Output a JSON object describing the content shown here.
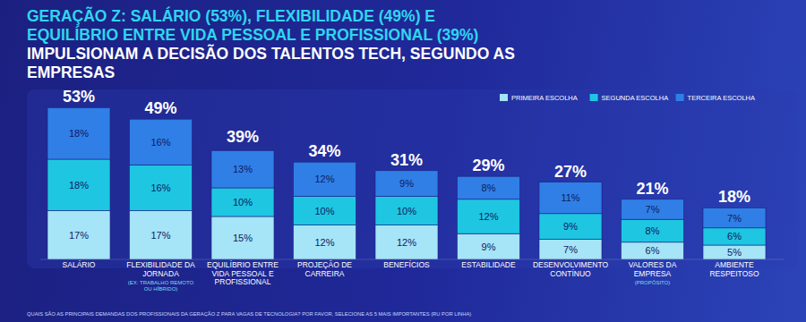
{
  "chart_data": {
    "type": "bar",
    "stacked": true,
    "data_labels": true,
    "tick_labels": false,
    "legend": "top-right",
    "title_highlight": "GERAÇÃO Z: SALÁRIO (53%), FLEXIBILIDADE (49%) E EQUILÍBRIO ENTRE VIDA PESSOAL E PROFISSIONAL (39%)",
    "title": "IMPULSIONAM A DECISÃO DOS TALENTOS TECH, SEGUNDO AS EMPRESAS",
    "note": "QUAIS SÃO AS PRINCIPAIS DEMANDAS DOS PROFISSIONAIS DA GERAÇÃO Z PARA VAGAS DE TECNOLOGIA? POR FAVOR, SELECIONE AS 5 MAIS IMPORTANTES (RU POR LINHA)",
    "categories": [
      "SALÁRIO",
      "FLEXIBILIDADE DA JORNADA",
      "EQUILÍBRIO ENTRE VIDA PESSOAL E PROFISSIONAL",
      "PROJEÇÃO DE CARREIRA",
      "BENEFÍCIOS",
      "ESTABILIDADE",
      "DESENVOLVIMENTO CONTÍNUO",
      "VALORES DA EMPRESA",
      "AMBIENTE RESPEITOSO"
    ],
    "category_notes": [
      null,
      "(EX: TRABALHO REMOTO OU HÍBRIDO)",
      null,
      null,
      null,
      null,
      null,
      "(PROPÓSITO)",
      null
    ],
    "ylim": [
      0,
      55
    ],
    "totals": [
      53,
      49,
      39,
      34,
      31,
      29,
      27,
      21,
      18
    ],
    "total_labels": [
      "53%",
      "49%",
      "39%",
      "34%",
      "31%",
      "29%",
      "27%",
      "21%",
      "18%"
    ],
    "series": [
      {
        "name": "PRIMEIRA ESCOLHA",
        "color": "#a6e4f7",
        "values": [
          17,
          17,
          15,
          12,
          12,
          9,
          7,
          6,
          5
        ],
        "value_labels": [
          "17%",
          "17%",
          "15%",
          "12%",
          "12%",
          "9%",
          "7%",
          "6%",
          "5%"
        ]
      },
      {
        "name": "SEGUNDA ESCOLHA",
        "color": "#1ec6e2",
        "values": [
          18,
          16,
          10,
          10,
          10,
          12,
          9,
          8,
          6
        ],
        "value_labels": [
          "18%",
          "16%",
          "10%",
          "10%",
          "10%",
          "12%",
          "9%",
          "8%",
          "6%"
        ]
      },
      {
        "name": "TERCEIRA ESCOLHA",
        "color": "#2f7fe6",
        "values": [
          18,
          16,
          13,
          12,
          9,
          8,
          11,
          7,
          7
        ],
        "value_labels": [
          "18%",
          "16%",
          "13%",
          "12%",
          "9%",
          "8%",
          "11%",
          "7%",
          "7%"
        ]
      }
    ]
  }
}
